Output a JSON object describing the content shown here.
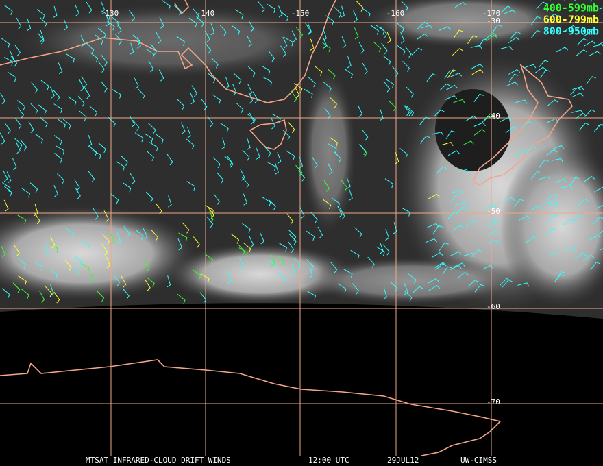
{
  "map": {
    "longitude_labels": [
      "-130",
      "-140",
      "-150",
      "-160",
      "-170"
    ],
    "latitude_labels": [
      "-30",
      "-40",
      "-50",
      "-60",
      "-70"
    ],
    "legend": [
      {
        "label": "400-599mb",
        "color": "#33ff33"
      },
      {
        "label": "600-799mb",
        "color": "#ffff33"
      },
      {
        "label": "800-950mb",
        "color": "#33ffff"
      }
    ],
    "footer": {
      "product": "MTSAT INFRARED-CLOUD DRIFT WINDS",
      "time": "12:00 UTC",
      "date": "29JUL12",
      "source": "UW-CIMSS"
    }
  }
}
